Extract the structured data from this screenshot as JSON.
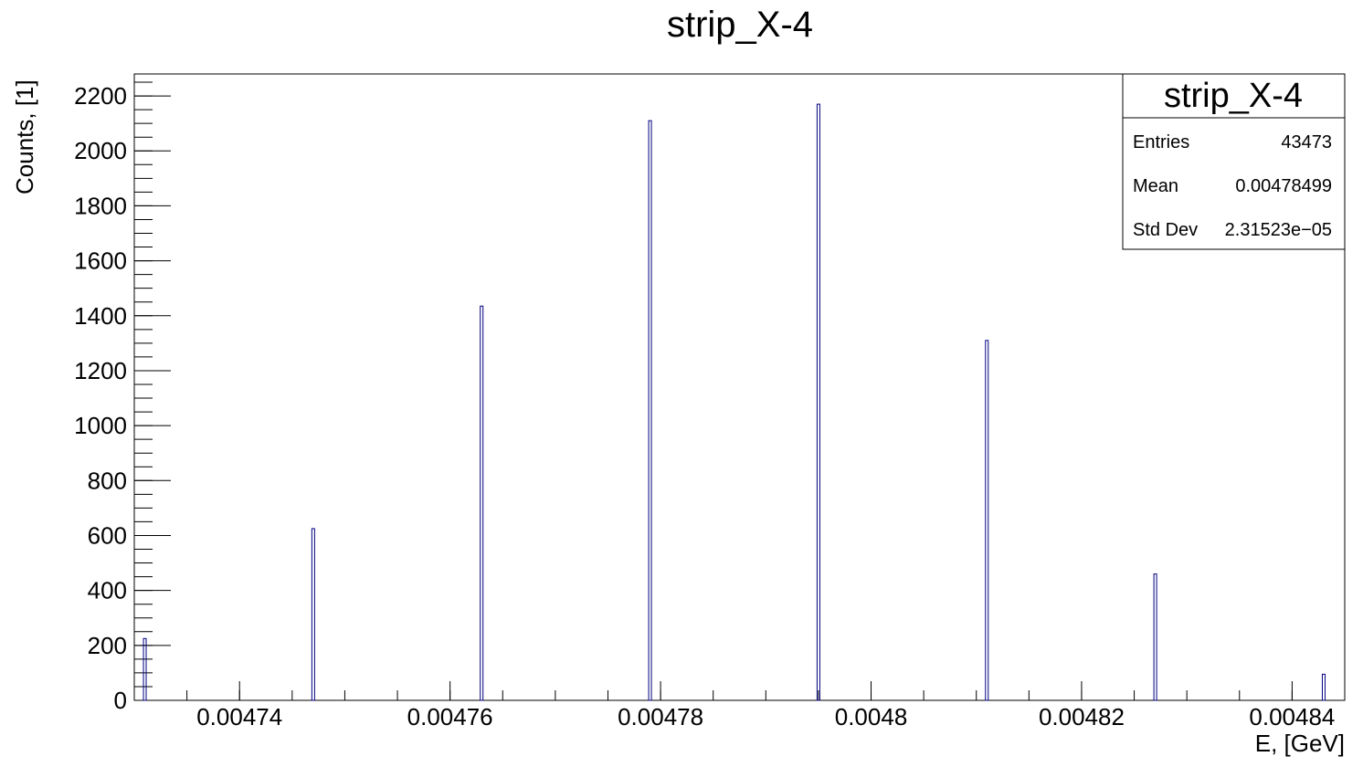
{
  "chart_data": {
    "type": "bar",
    "title": "strip_X-4",
    "xlabel": "E, [GeV]",
    "ylabel": "Counts, [1]",
    "xlim": [
      0.00473,
      0.004845
    ],
    "ylim": [
      0,
      2280
    ],
    "x_ticks": [
      {
        "value": 0.00474,
        "label": "0.00474"
      },
      {
        "value": 0.00476,
        "label": "0.00476"
      },
      {
        "value": 0.00478,
        "label": "0.00478"
      },
      {
        "value": 0.0048,
        "label": "0.0048"
      },
      {
        "value": 0.00482,
        "label": "0.00482"
      },
      {
        "value": 0.00484,
        "label": "0.00484"
      }
    ],
    "y_ticks": [
      0,
      200,
      400,
      600,
      800,
      1000,
      1200,
      1400,
      1600,
      1800,
      2000,
      2200
    ],
    "bars": [
      {
        "x": 0.004731,
        "value": 225
      },
      {
        "x": 0.004747,
        "value": 625
      },
      {
        "x": 0.004763,
        "value": 1435
      },
      {
        "x": 0.004779,
        "value": 2110
      },
      {
        "x": 0.004795,
        "value": 2170
      },
      {
        "x": 0.004811,
        "value": 1310
      },
      {
        "x": 0.004827,
        "value": 460
      },
      {
        "x": 0.004843,
        "value": 95
      }
    ],
    "line_color": "#000080",
    "grid": false,
    "legend": "none"
  },
  "stats_box": {
    "title": "strip_X-4",
    "rows": [
      {
        "label": "Entries",
        "value": "43473"
      },
      {
        "label": "Mean",
        "value": "0.00478499"
      },
      {
        "label": "Std Dev",
        "value": "2.31523e−05"
      }
    ],
    "placement": "top-right"
  }
}
